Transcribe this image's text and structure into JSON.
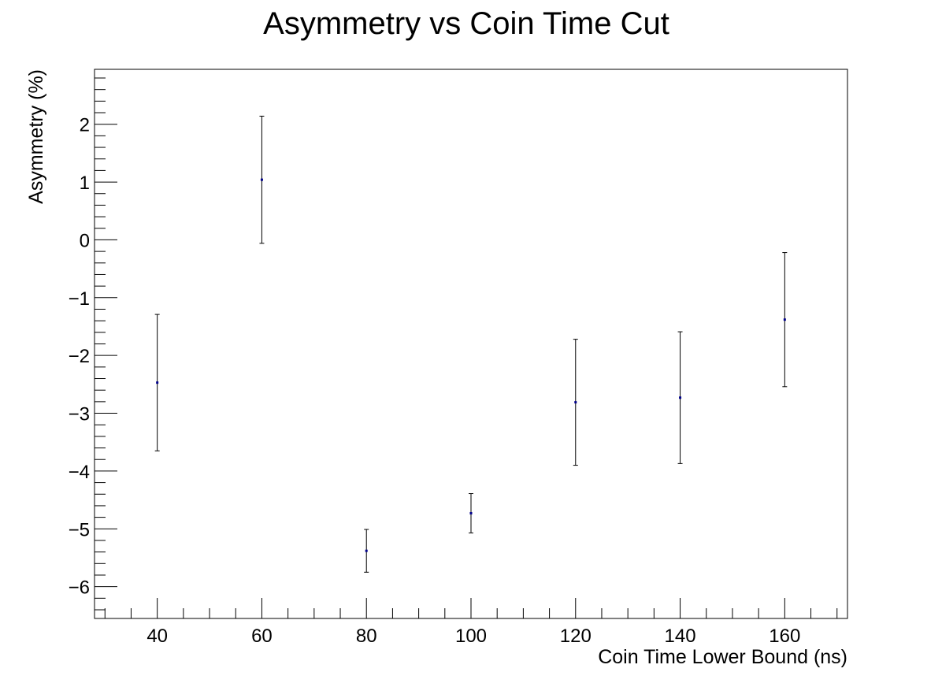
{
  "chart_data": {
    "type": "scatter",
    "title": "Asymmetry vs Coin Time Cut",
    "xlabel": "Coin Time Lower Bound (ns)",
    "ylabel": "Asymmetry (%)",
    "xlim": [
      28,
      172
    ],
    "ylim": [
      -6.55,
      2.95
    ],
    "x_major_ticks": [
      40,
      60,
      80,
      100,
      120,
      140,
      160
    ],
    "x_tick_labels": [
      "40",
      "60",
      "80",
      "100",
      "120",
      "140",
      "160"
    ],
    "x_minor_step": 5,
    "y_major_ticks": [
      -6,
      -5,
      -4,
      -3,
      -2,
      -1,
      0,
      1,
      2
    ],
    "y_tick_labels": [
      "−6",
      "−5",
      "−4",
      "−3",
      "−2",
      "−1",
      "0",
      "1",
      "2"
    ],
    "y_minor_step": 0.2,
    "grid": false,
    "legend": "none",
    "series": [
      {
        "x": [
          40,
          60,
          80,
          100,
          120,
          140,
          160
        ],
        "y": [
          -2.47,
          1.04,
          -5.38,
          -4.73,
          -2.81,
          -2.73,
          -1.38
        ],
        "yerr": [
          1.18,
          1.1,
          0.37,
          0.34,
          1.09,
          1.14,
          1.16
        ],
        "color": "#00008b"
      }
    ],
    "colors": {
      "marker": "#00008b",
      "error_bar": "#000000",
      "axis": "#000000"
    }
  }
}
